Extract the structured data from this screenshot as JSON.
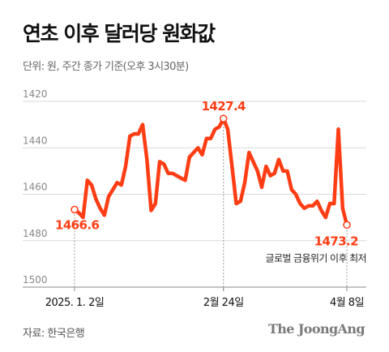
{
  "title": "연초 이후 달러당 원화값",
  "subtitle": "단위: 원, 주간 종가 기준(오후 3시30분)",
  "source": "자료: 한국은행",
  "logo": "The JoongAng",
  "colors": {
    "line": "#ff3d14",
    "grid": "#d9d9d9",
    "axis": "#888888",
    "text": "#111111"
  },
  "chart_data": {
    "type": "line",
    "title": "연초 이후 달러당 원화값",
    "ylim": [
      1500,
      1420
    ],
    "y_inverted": true,
    "y_ticks": [
      1420,
      1440,
      1460,
      1480,
      1500
    ],
    "x_tick_labels": [
      "2025. 1. 2일",
      "2월 24일",
      "4월 8일"
    ],
    "grid": true,
    "series": [
      {
        "values": [
          1466.6,
          1468,
          1470,
          1454,
          1456,
          1462,
          1466,
          1469,
          1461,
          1458,
          1455,
          1456,
          1448,
          1435,
          1434,
          1434,
          1430,
          1445,
          1467,
          1464,
          1446,
          1447,
          1451,
          1451,
          1452,
          1453,
          1454,
          1444,
          1442,
          1440,
          1443,
          1436,
          1436,
          1432,
          1431,
          1427.4,
          1432,
          1448,
          1464,
          1463,
          1455,
          1442,
          1446,
          1450,
          1457,
          1448,
          1452,
          1451,
          1445,
          1450,
          1450,
          1458,
          1460,
          1464,
          1466,
          1465,
          1465,
          1463,
          1467,
          1470,
          1464,
          1464,
          1432,
          1466,
          1473.2
        ]
      }
    ],
    "annotations": [
      {
        "label": "1466.6",
        "index": 0
      },
      {
        "label": "1427.4",
        "index": 35
      },
      {
        "label": "1473.2",
        "index": 64
      },
      {
        "label": "글로벌 금융위기 이후 최저",
        "index": 64
      }
    ]
  }
}
